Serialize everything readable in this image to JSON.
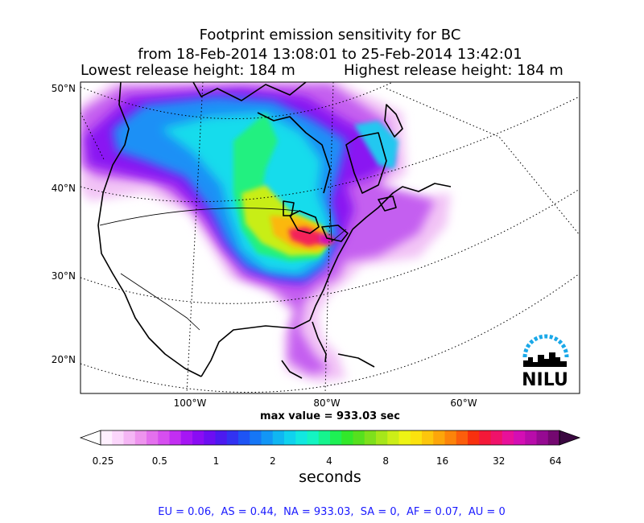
{
  "title": {
    "line1": "Footprint emission sensitivity for BC",
    "line2": "from 18-Feb-2014 13:08:01 to 25-Feb-2014 13:42:01",
    "lowest_release": "Lowest release height: 184 m",
    "highest_release": "Highest release height: 184 m"
  },
  "logo": {
    "text": "NILU"
  },
  "max_value_text": "max value = 933.03 sec",
  "region_summary": "EU = 0.06,  AS = 0.44,  NA = 933.03,  SA = 0,  AF = 0.07,  AU = 0",
  "chart_data": {
    "type": "heatmap",
    "map_projection": "conic (North America)",
    "lat_ticks": [
      "50°N",
      "40°N",
      "30°N",
      "20°N"
    ],
    "lon_ticks": [
      "100°W",
      "80°W",
      "60°W"
    ],
    "max_value": 933.03,
    "colorbar": {
      "ticks": [
        "0.25",
        "0.5",
        "1",
        "2",
        "4",
        "8",
        "16",
        "32",
        "64"
      ],
      "tick_values": [
        0.25,
        0.5,
        1,
        2,
        4,
        8,
        16,
        32,
        64
      ],
      "unit": "seconds",
      "colors": [
        "#fef0fe",
        "#fbd6fb",
        "#f5b6f5",
        "#ee94ee",
        "#e470ee",
        "#d64ef0",
        "#c22ef2",
        "#a616f4",
        "#8a0cf4",
        "#6c0ef2",
        "#4c1af0",
        "#3232f2",
        "#1e54f4",
        "#1676f6",
        "#1296f6",
        "#10b6f2",
        "#10d2ee",
        "#12e8e0",
        "#14f4c2",
        "#16f48e",
        "#1ef054",
        "#32e82a",
        "#56e01e",
        "#7ee01c",
        "#a6e61a",
        "#ccee18",
        "#eef414",
        "#fbe20e",
        "#fcc60c",
        "#fca60a",
        "#fc840a",
        "#fb5e0c",
        "#f8300e",
        "#f41838",
        "#f0126a",
        "#e8109a",
        "#d40eb4",
        "#b80caa",
        "#960a92",
        "#740870"
      ]
    },
    "regions": {
      "EU": 0.06,
      "AS": 0.44,
      "NA": 933.03,
      "SA": 0,
      "AF": 0.07,
      "AU": 0
    }
  }
}
